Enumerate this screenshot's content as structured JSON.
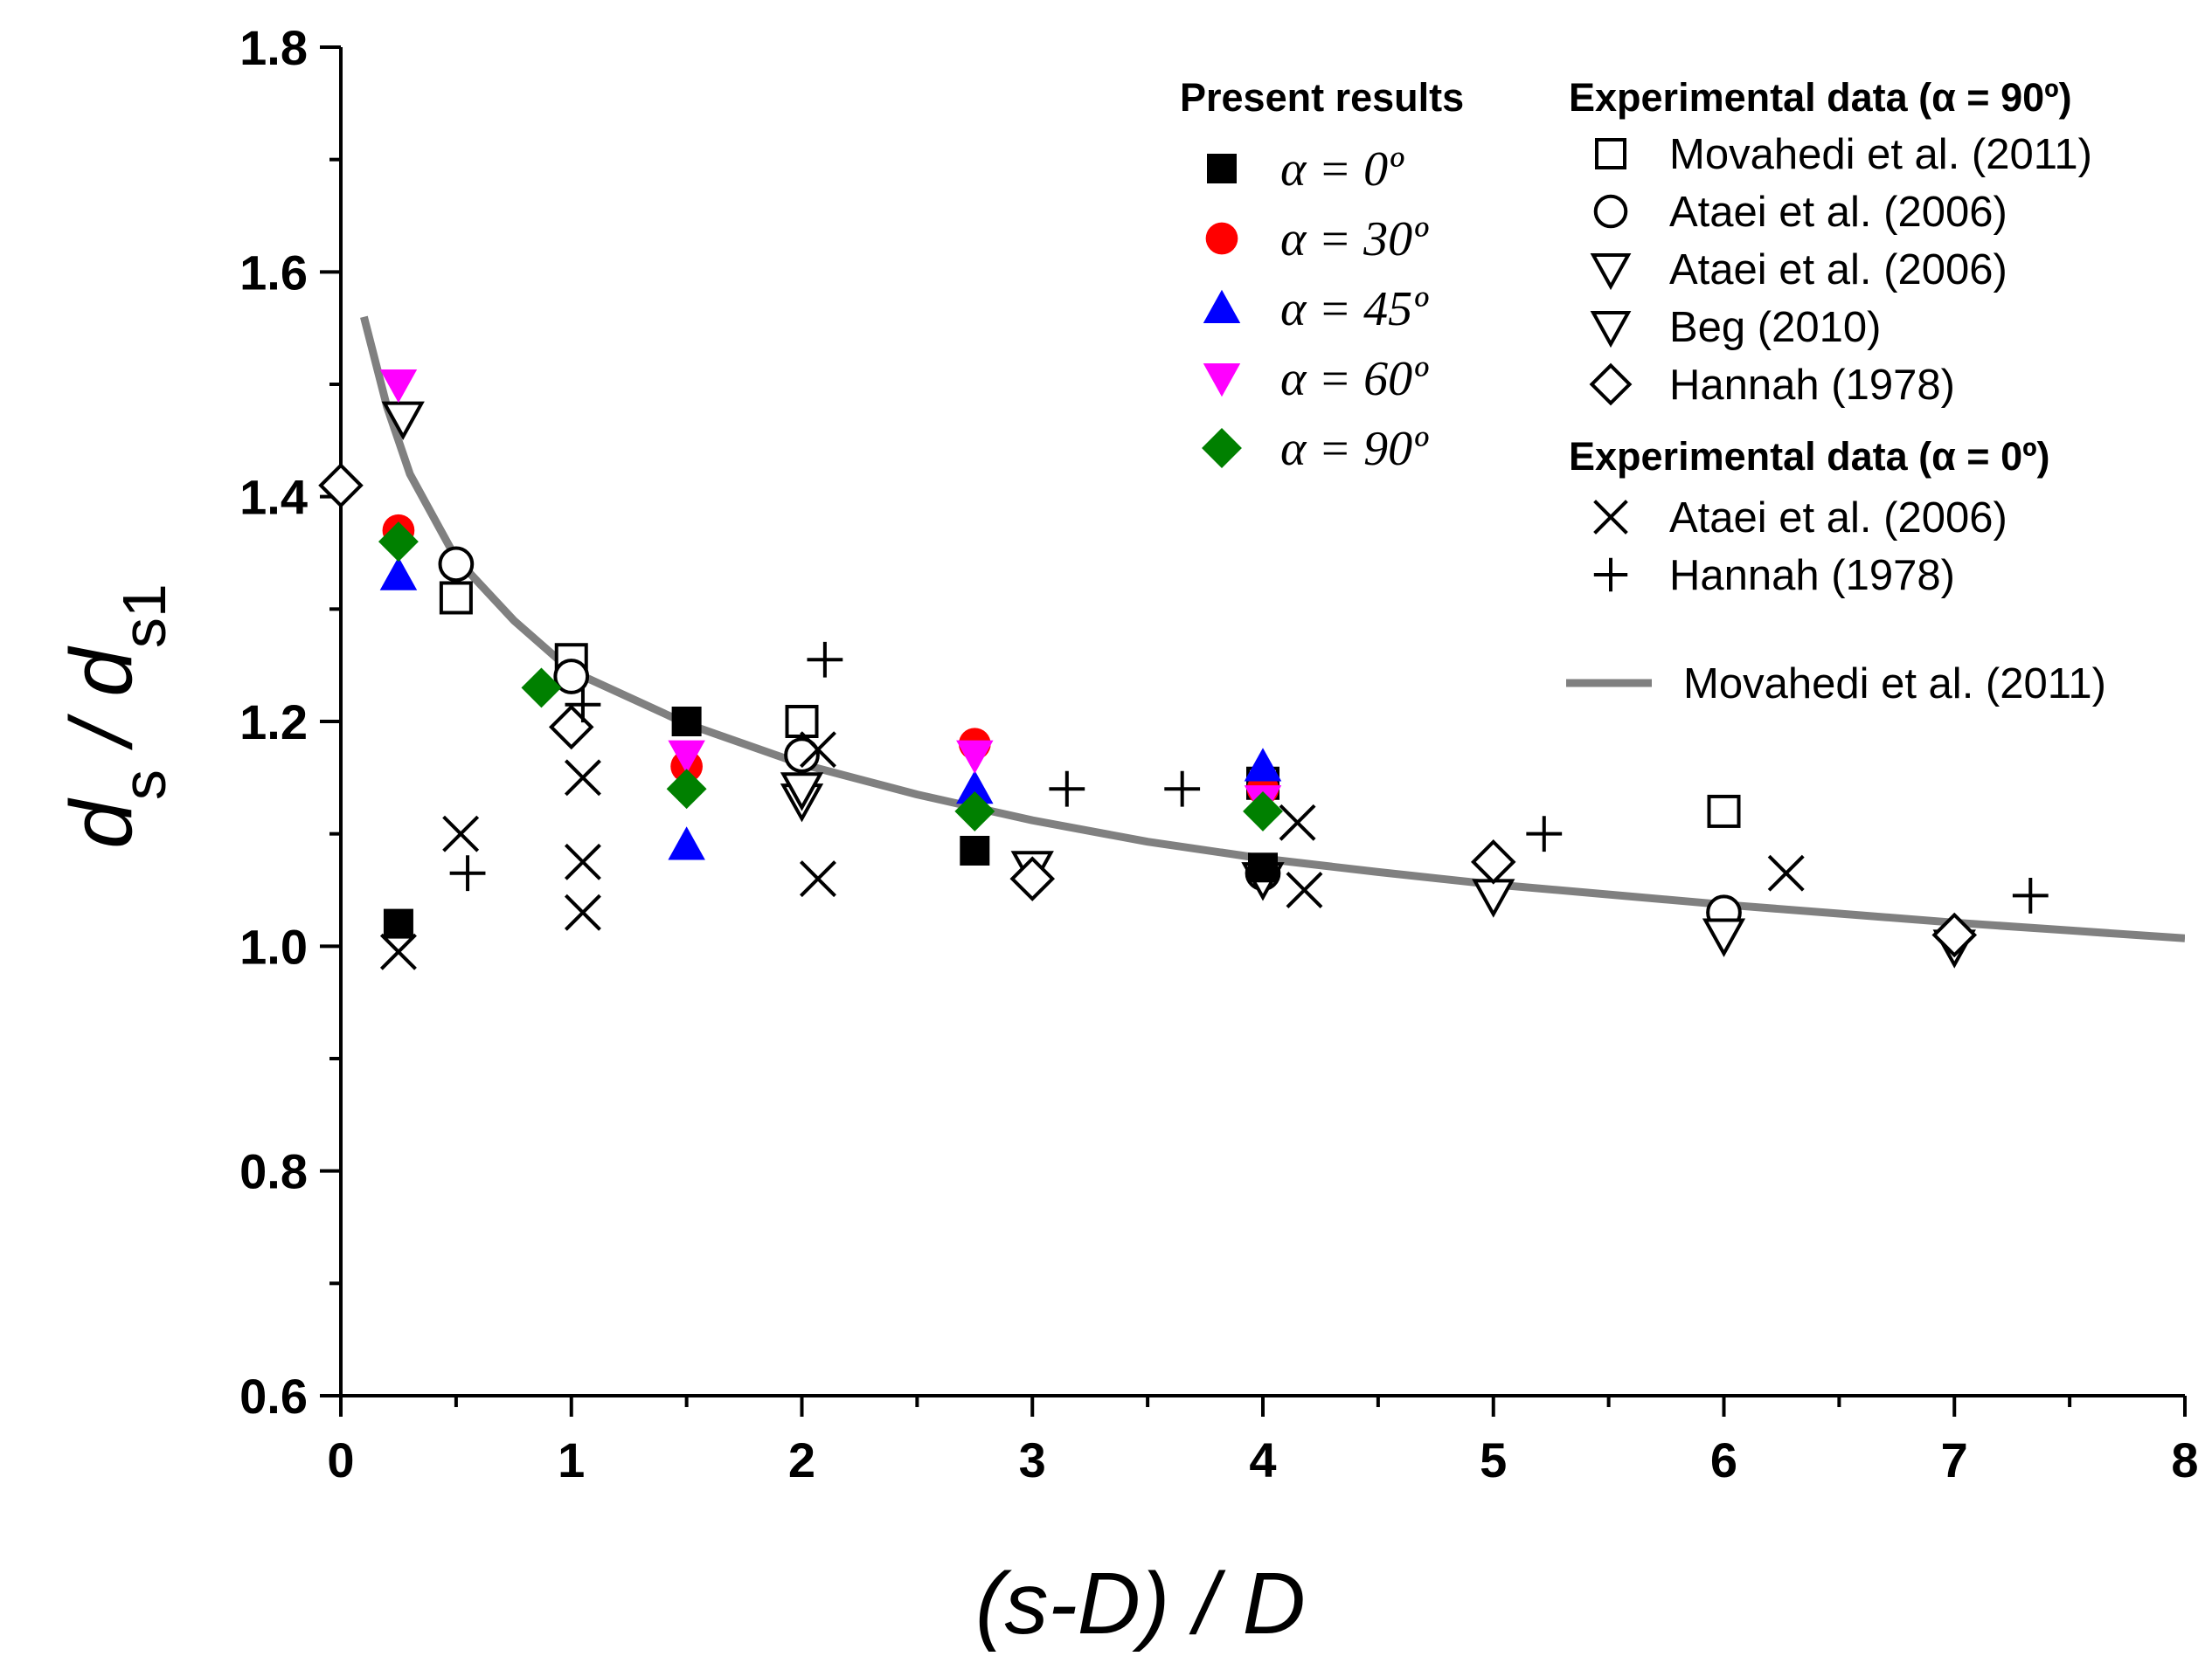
{
  "chart_data": {
    "type": "scatter",
    "xlabel": "(s-D) / D",
    "ylabel": "d_s / d_s1",
    "xlim": [
      0,
      8
    ],
    "ylim": [
      0.6,
      1.8
    ],
    "x_ticks": [
      "0",
      "1",
      "2",
      "3",
      "4",
      "5",
      "6",
      "7",
      "8"
    ],
    "y_ticks": [
      "0.6",
      "0.8",
      "1.0",
      "1.2",
      "1.4",
      "1.6",
      "1.8"
    ],
    "grid": false,
    "legend_groups": [
      {
        "title": "Present results",
        "position": "top-center"
      },
      {
        "title": "Experimental data (α = 90º)",
        "position": "top-right"
      },
      {
        "title": "Experimental data (α = 0º)",
        "position": "right"
      }
    ],
    "series": [
      {
        "name": "α = 0º",
        "group": "Present results",
        "marker": "square-filled",
        "color": "#000000",
        "points": [
          [
            0.25,
            1.02
          ],
          [
            1.5,
            1.2
          ],
          [
            2.75,
            1.085
          ],
          [
            4.0,
            1.07
          ]
        ]
      },
      {
        "name": "α = 30º",
        "group": "Present results",
        "marker": "circle-filled",
        "color": "#ff0000",
        "points": [
          [
            0.25,
            1.37
          ],
          [
            1.5,
            1.16
          ],
          [
            2.75,
            1.18
          ],
          [
            4.0,
            1.14
          ]
        ]
      },
      {
        "name": "α = 45º",
        "group": "Present results",
        "marker": "triangle-up-filled",
        "color": "#0000ff",
        "points": [
          [
            0.25,
            1.33
          ],
          [
            1.5,
            1.09
          ],
          [
            2.75,
            1.14
          ],
          [
            4.0,
            1.16
          ]
        ]
      },
      {
        "name": "α = 60º",
        "group": "Present results",
        "marker": "triangle-down-filled",
        "color": "#ff00ff",
        "points": [
          [
            0.25,
            1.5
          ],
          [
            1.5,
            1.17
          ],
          [
            2.75,
            1.17
          ],
          [
            4.0,
            1.13
          ]
        ]
      },
      {
        "name": "α = 90º",
        "group": "Present results",
        "marker": "diamond-filled",
        "color": "#008000",
        "points": [
          [
            0.25,
            1.36
          ],
          [
            0.87,
            1.23
          ],
          [
            1.5,
            1.14
          ],
          [
            2.75,
            1.12
          ],
          [
            4.0,
            1.12
          ]
        ]
      },
      {
        "name": "Movahedi et al. (2011)",
        "group": "Experimental data (α = 90º)",
        "marker": "square-open",
        "color": "#000000",
        "points": [
          [
            0.5,
            1.31
          ],
          [
            1.0,
            1.255
          ],
          [
            2.0,
            1.2
          ],
          [
            4.0,
            1.145
          ],
          [
            6.0,
            1.12
          ]
        ]
      },
      {
        "name": "Ataei et al. (2006)",
        "group": "Experimental data (α = 90º)",
        "marker": "circle-open",
        "color": "#000000",
        "points": [
          [
            0.5,
            1.34
          ],
          [
            1.0,
            1.24
          ],
          [
            2.0,
            1.17
          ],
          [
            4.0,
            1.065
          ],
          [
            6.0,
            1.03
          ]
        ]
      },
      {
        "name": "Ataei et al. (2006)",
        "group": "Experimental data (α = 90º)",
        "marker": "triangle-down-open",
        "color": "#000000",
        "points": [
          [
            0.27,
            1.47
          ],
          [
            2.0,
            1.13
          ],
          [
            3.0,
            1.07
          ],
          [
            4.0,
            1.06
          ]
        ]
      },
      {
        "name": "Beg (2010)",
        "group": "Experimental data (α = 90º)",
        "marker": "triangle-down-open",
        "color": "#000000",
        "points": [
          [
            2.0,
            1.14
          ],
          [
            5.0,
            1.045
          ],
          [
            6.0,
            1.01
          ],
          [
            7.0,
            1.0
          ]
        ]
      },
      {
        "name": "Hannah (1978)",
        "group": "Experimental data (α = 90º)",
        "marker": "diamond-open",
        "color": "#000000",
        "points": [
          [
            0.0,
            1.41
          ],
          [
            1.0,
            1.195
          ],
          [
            3.0,
            1.06
          ],
          [
            5.0,
            1.075
          ],
          [
            7.0,
            1.01
          ]
        ]
      },
      {
        "name": "Ataei et al. (2006)",
        "group": "Experimental data (α = 0º)",
        "marker": "x",
        "color": "#000000",
        "points": [
          [
            0.25,
            0.995
          ],
          [
            0.52,
            1.1
          ],
          [
            1.05,
            1.15
          ],
          [
            1.05,
            1.075
          ],
          [
            1.05,
            1.03
          ],
          [
            2.07,
            1.175
          ],
          [
            2.07,
            1.06
          ],
          [
            4.15,
            1.11
          ],
          [
            4.18,
            1.05
          ],
          [
            6.27,
            1.065
          ]
        ]
      },
      {
        "name": "Hannah (1978)",
        "group": "Experimental data (α = 0º)",
        "marker": "plus",
        "color": "#000000",
        "points": [
          [
            0.55,
            1.065
          ],
          [
            1.05,
            1.215
          ],
          [
            2.1,
            1.255
          ],
          [
            3.15,
            1.14
          ],
          [
            3.65,
            1.14
          ],
          [
            5.22,
            1.1
          ],
          [
            7.33,
            1.045
          ]
        ]
      },
      {
        "name": "Movahedi et al. (2011)",
        "type": "line",
        "color": "#808080",
        "points": [
          [
            0.1,
            1.56
          ],
          [
            0.2,
            1.48
          ],
          [
            0.3,
            1.42
          ],
          [
            0.5,
            1.345
          ],
          [
            0.75,
            1.29
          ],
          [
            1.0,
            1.245
          ],
          [
            1.5,
            1.198
          ],
          [
            2.0,
            1.162
          ],
          [
            2.5,
            1.135
          ],
          [
            3.0,
            1.112
          ],
          [
            3.5,
            1.093
          ],
          [
            4.0,
            1.078
          ],
          [
            4.5,
            1.066
          ],
          [
            5.0,
            1.055
          ],
          [
            5.5,
            1.046
          ],
          [
            6.0,
            1.037
          ],
          [
            6.5,
            1.029
          ],
          [
            7.0,
            1.021
          ],
          [
            7.5,
            1.014
          ],
          [
            8.0,
            1.007
          ]
        ]
      }
    ]
  }
}
